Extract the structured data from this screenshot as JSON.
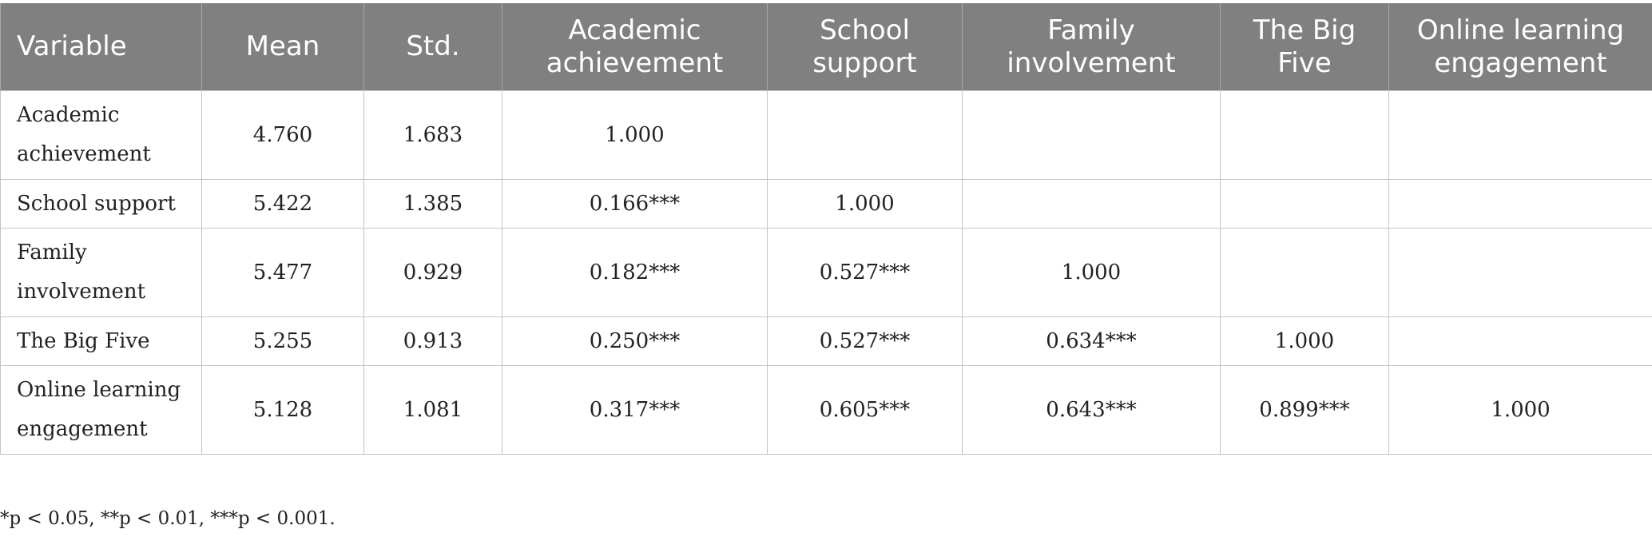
{
  "table": {
    "headers": [
      "Variable",
      "Mean",
      "Std.",
      "Academic achievement",
      "School support",
      "Family involvement",
      "The Big Five",
      "Online learning engagement"
    ],
    "rows": [
      [
        "Academic achievement",
        "4.760",
        "1.683",
        "1.000",
        "",
        "",
        "",
        ""
      ],
      [
        "School support",
        "5.422",
        "1.385",
        "0.166***",
        "1.000",
        "",
        "",
        ""
      ],
      [
        "Family involvement",
        "5.477",
        "0.929",
        "0.182***",
        "0.527***",
        "1.000",
        "",
        ""
      ],
      [
        "The Big Five",
        "5.255",
        "0.913",
        "0.250***",
        "0.527***",
        "0.634***",
        "1.000",
        ""
      ],
      [
        "Online learning engagement",
        "5.128",
        "1.081",
        "0.317***",
        "0.605***",
        "0.643***",
        "0.899***",
        "1.000"
      ]
    ]
  },
  "footnote": "*p < 0.05, **p < 0.01, ***p < 0.001."
}
